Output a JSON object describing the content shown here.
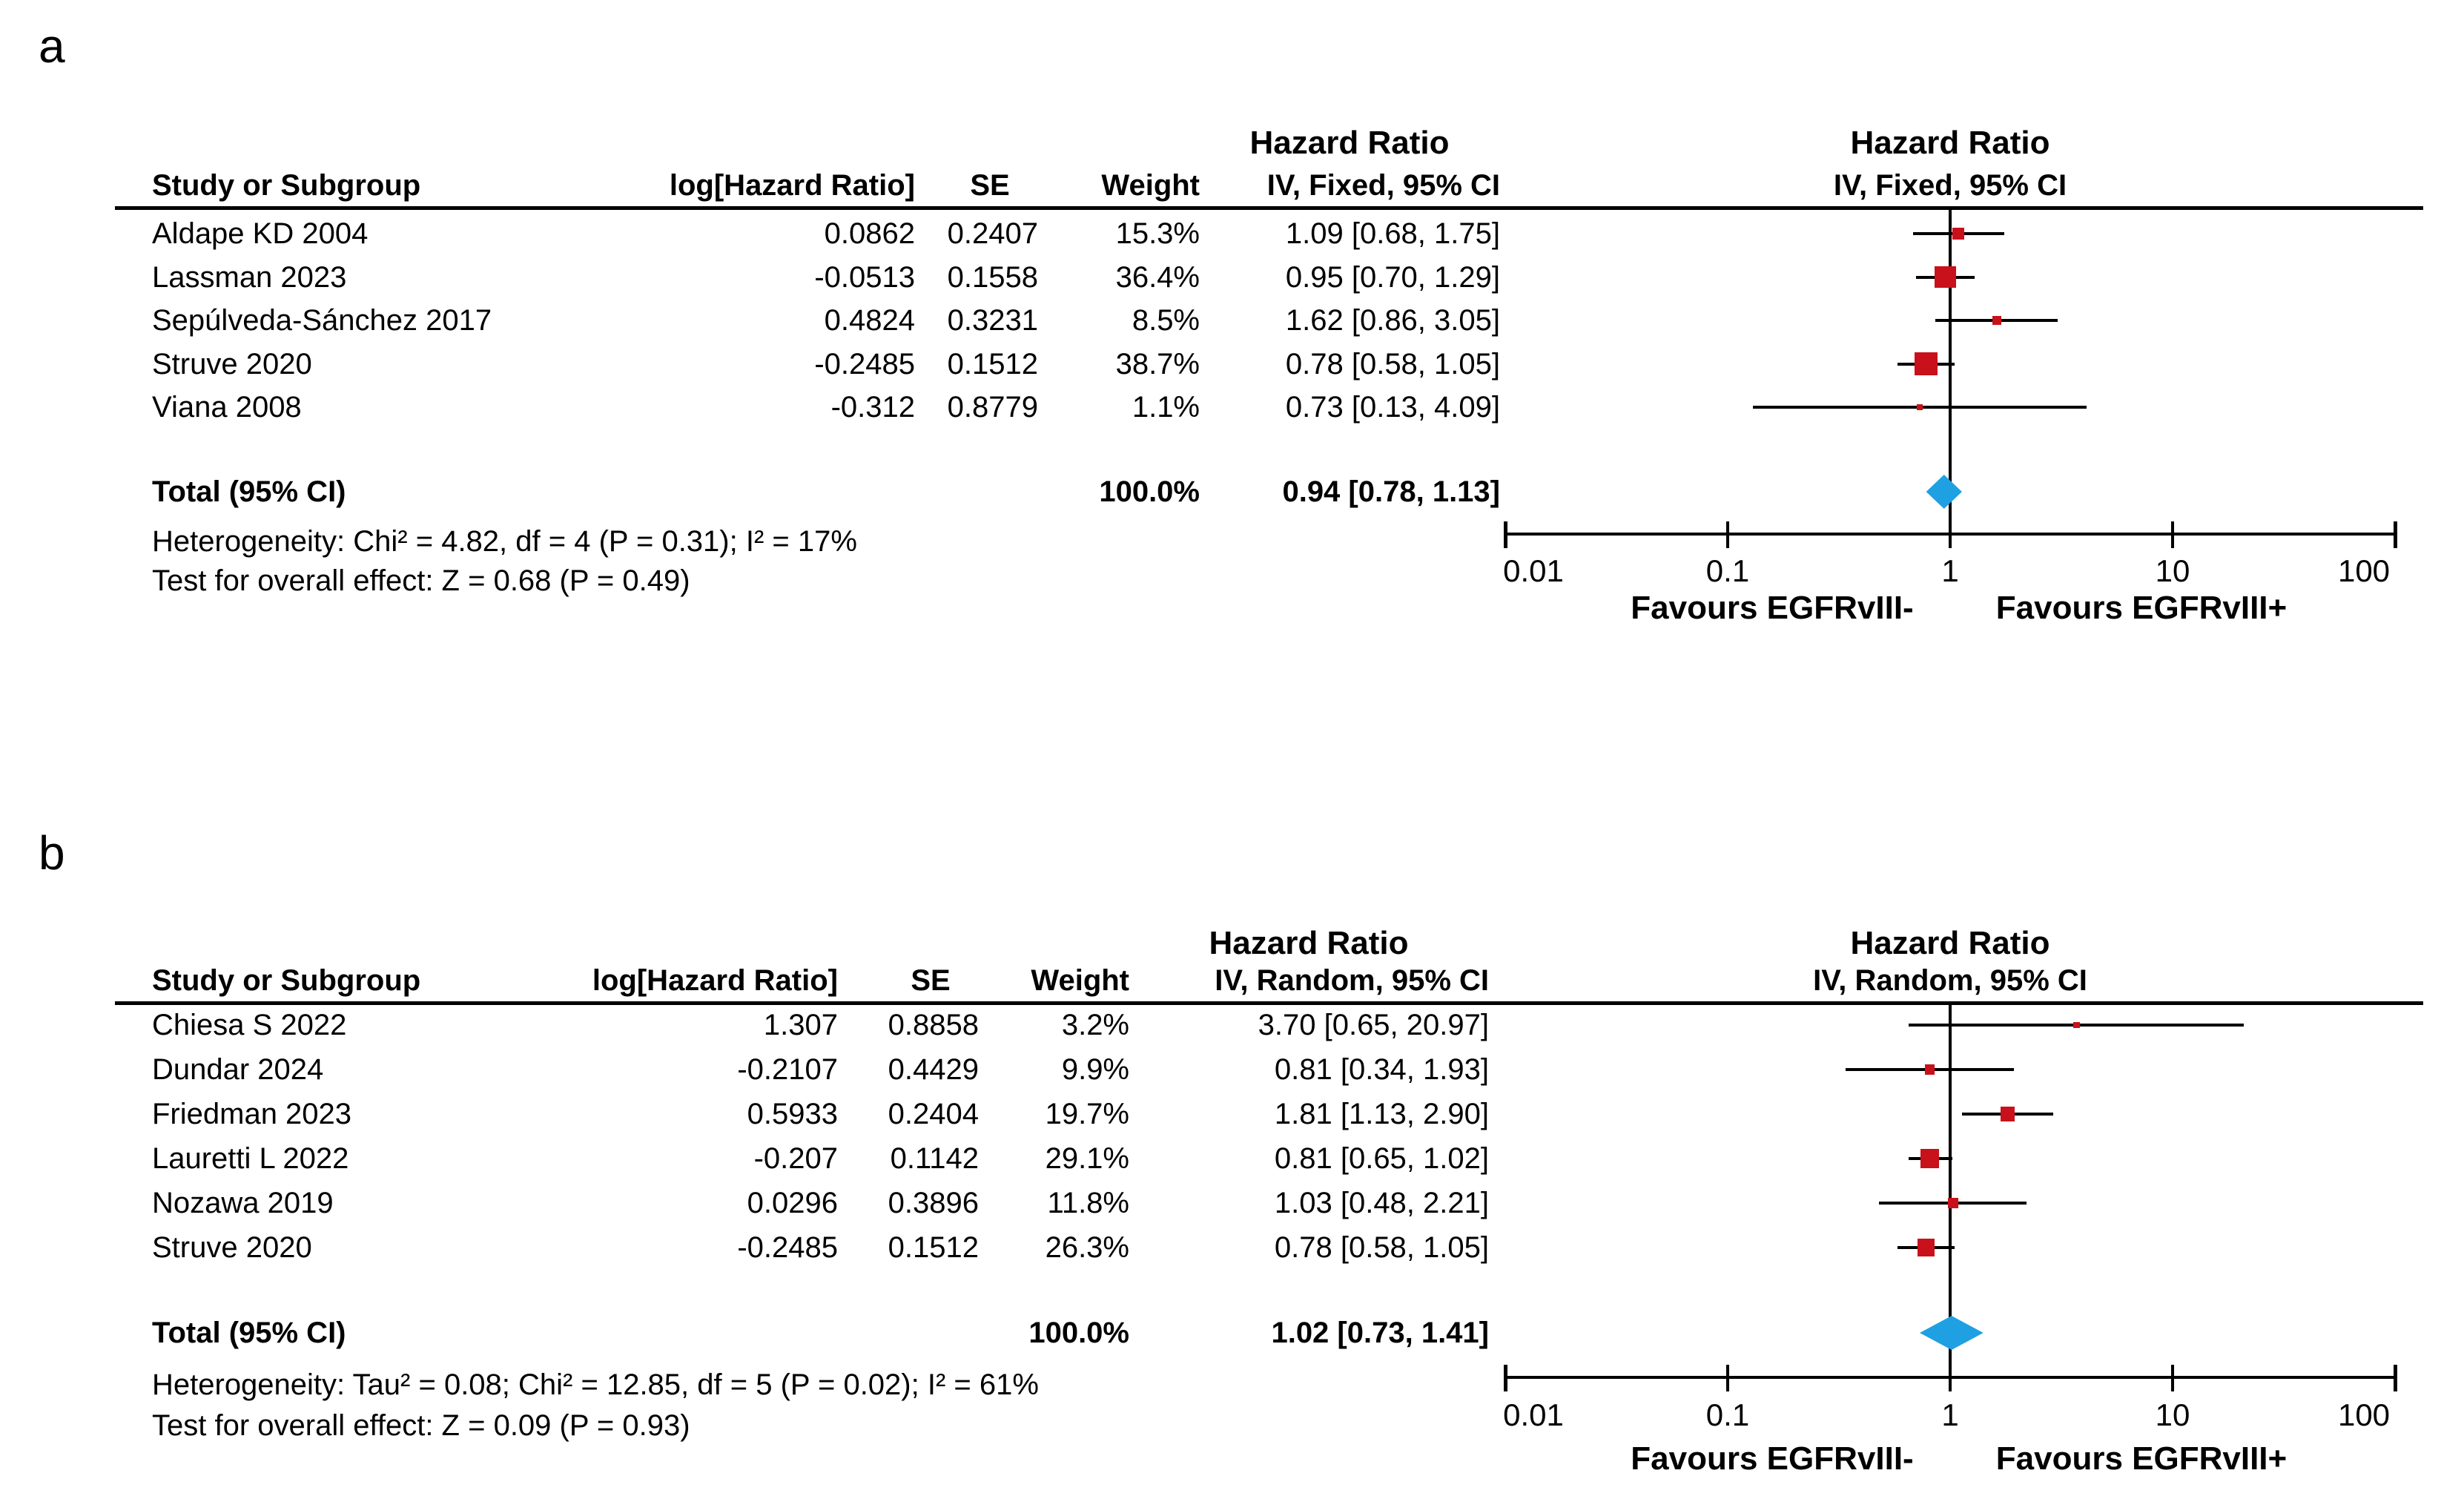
{
  "colors": {
    "marker_red": "#C8111A",
    "diamond_blue": "#1EA0E2",
    "line_black": "#000000"
  },
  "panels": [
    {
      "label": "a",
      "table": {
        "effect_header": "Hazard Ratio",
        "columns": {
          "study": "Study or Subgroup",
          "log_hr": "log[Hazard Ratio]",
          "se": "SE",
          "weight": "Weight",
          "ci": "IV, Fixed, 95% CI"
        },
        "rows": [
          {
            "study": "Aldape KD 2004",
            "log_hr": "0.0862",
            "se": "0.2407",
            "weight": "15.3%",
            "ci": "1.09 [0.68, 1.75]"
          },
          {
            "study": "Lassman 2023",
            "log_hr": "-0.0513",
            "se": "0.1558",
            "weight": "36.4%",
            "ci": "0.95 [0.70, 1.29]"
          },
          {
            "study": "Sepúlveda-Sánchez 2017",
            "log_hr": "0.4824",
            "se": "0.3231",
            "weight": "8.5%",
            "ci": "1.62 [0.86, 3.05]"
          },
          {
            "study": "Struve 2020",
            "log_hr": "-0.2485",
            "se": "0.1512",
            "weight": "38.7%",
            "ci": "0.78 [0.58, 1.05]"
          },
          {
            "study": "Viana 2008",
            "log_hr": "-0.312",
            "se": "0.8779",
            "weight": "1.1%",
            "ci": "0.73 [0.13, 4.09]"
          }
        ],
        "total": {
          "label": "Total (95% CI)",
          "weight": "100.0%",
          "ci": "0.94 [0.78, 1.13]"
        },
        "heterogeneity": "Heterogeneity: Chi² = 4.82, df = 4 (P = 0.31); I² = 17%",
        "overall_effect": "Test for overall effect: Z = 0.68 (P = 0.49)"
      },
      "plot": {
        "effect_header": "Hazard Ratio",
        "model_header": "IV, Fixed, 95% CI",
        "axis_ticks": [
          "0.01",
          "0.1",
          "1",
          "10",
          "100"
        ],
        "favours_left": "Favours EGFRvIII-",
        "favours_right": "Favours EGFRvIII+"
      }
    },
    {
      "label": "b",
      "table": {
        "effect_header": "Hazard Ratio",
        "columns": {
          "study": "Study or Subgroup",
          "log_hr": "log[Hazard Ratio]",
          "se": "SE",
          "weight": "Weight",
          "ci": "IV, Random, 95% CI"
        },
        "rows": [
          {
            "study": "Chiesa S 2022",
            "log_hr": "1.307",
            "se": "0.8858",
            "weight": "3.2%",
            "ci": "3.70 [0.65, 20.97]"
          },
          {
            "study": "Dundar 2024",
            "log_hr": "-0.2107",
            "se": "0.4429",
            "weight": "9.9%",
            "ci": "0.81 [0.34, 1.93]"
          },
          {
            "study": "Friedman 2023",
            "log_hr": "0.5933",
            "se": "0.2404",
            "weight": "19.7%",
            "ci": "1.81 [1.13, 2.90]"
          },
          {
            "study": "Lauretti L 2022",
            "log_hr": "-0.207",
            "se": "0.1142",
            "weight": "29.1%",
            "ci": "0.81 [0.65, 1.02]"
          },
          {
            "study": "Nozawa 2019",
            "log_hr": "0.0296",
            "se": "0.3896",
            "weight": "11.8%",
            "ci": "1.03 [0.48, 2.21]"
          },
          {
            "study": "Struve 2020",
            "log_hr": "-0.2485",
            "se": "0.1512",
            "weight": "26.3%",
            "ci": "0.78 [0.58, 1.05]"
          }
        ],
        "total": {
          "label": "Total (95% CI)",
          "weight": "100.0%",
          "ci": "1.02 [0.73, 1.41]"
        },
        "heterogeneity": "Heterogeneity: Tau² = 0.08; Chi² = 12.85, df = 5 (P = 0.02); I² = 61%",
        "overall_effect": "Test for overall effect: Z = 0.09 (P = 0.93)"
      },
      "plot": {
        "effect_header": "Hazard Ratio",
        "model_header": "IV, Random, 95% CI",
        "axis_ticks": [
          "0.01",
          "0.1",
          "1",
          "10",
          "100"
        ],
        "favours_left": "Favours EGFRvIII-",
        "favours_right": "Favours EGFRvIII+"
      }
    }
  ],
  "chart_data": [
    {
      "type": "scatter",
      "subtype": "forest_plot",
      "title": "Hazard Ratio IV, Fixed, 95% CI",
      "x_scale": "log10",
      "x_ticks": [
        0.01,
        0.1,
        1,
        10,
        100
      ],
      "xlim": [
        0.01,
        100
      ],
      "null_line": 1,
      "series": [
        {
          "name": "Aldape KD 2004",
          "hr": 1.09,
          "ci_low": 0.68,
          "ci_high": 1.75,
          "weight_pct": 15.3
        },
        {
          "name": "Lassman 2023",
          "hr": 0.95,
          "ci_low": 0.7,
          "ci_high": 1.29,
          "weight_pct": 36.4
        },
        {
          "name": "Sepúlveda-Sánchez 2017",
          "hr": 1.62,
          "ci_low": 0.86,
          "ci_high": 3.05,
          "weight_pct": 8.5
        },
        {
          "name": "Struve 2020",
          "hr": 0.78,
          "ci_low": 0.58,
          "ci_high": 1.05,
          "weight_pct": 38.7
        },
        {
          "name": "Viana 2008",
          "hr": 0.73,
          "ci_low": 0.13,
          "ci_high": 4.09,
          "weight_pct": 1.1
        }
      ],
      "total": {
        "name": "Total (95% CI)",
        "hr": 0.94,
        "ci_low": 0.78,
        "ci_high": 1.13,
        "weight_pct": 100.0
      }
    },
    {
      "type": "scatter",
      "subtype": "forest_plot",
      "title": "Hazard Ratio IV, Random, 95% CI",
      "x_scale": "log10",
      "x_ticks": [
        0.01,
        0.1,
        1,
        10,
        100
      ],
      "xlim": [
        0.01,
        100
      ],
      "null_line": 1,
      "series": [
        {
          "name": "Chiesa S 2022",
          "hr": 3.7,
          "ci_low": 0.65,
          "ci_high": 20.97,
          "weight_pct": 3.2
        },
        {
          "name": "Dundar 2024",
          "hr": 0.81,
          "ci_low": 0.34,
          "ci_high": 1.93,
          "weight_pct": 9.9
        },
        {
          "name": "Friedman 2023",
          "hr": 1.81,
          "ci_low": 1.13,
          "ci_high": 2.9,
          "weight_pct": 19.7
        },
        {
          "name": "Lauretti L 2022",
          "hr": 0.81,
          "ci_low": 0.65,
          "ci_high": 1.02,
          "weight_pct": 29.1
        },
        {
          "name": "Nozawa 2019",
          "hr": 1.03,
          "ci_low": 0.48,
          "ci_high": 2.21,
          "weight_pct": 11.8
        },
        {
          "name": "Struve 2020",
          "hr": 0.78,
          "ci_low": 0.58,
          "ci_high": 1.05,
          "weight_pct": 26.3
        }
      ],
      "total": {
        "name": "Total (95% CI)",
        "hr": 1.02,
        "ci_low": 0.73,
        "ci_high": 1.41,
        "weight_pct": 100.0
      }
    }
  ]
}
